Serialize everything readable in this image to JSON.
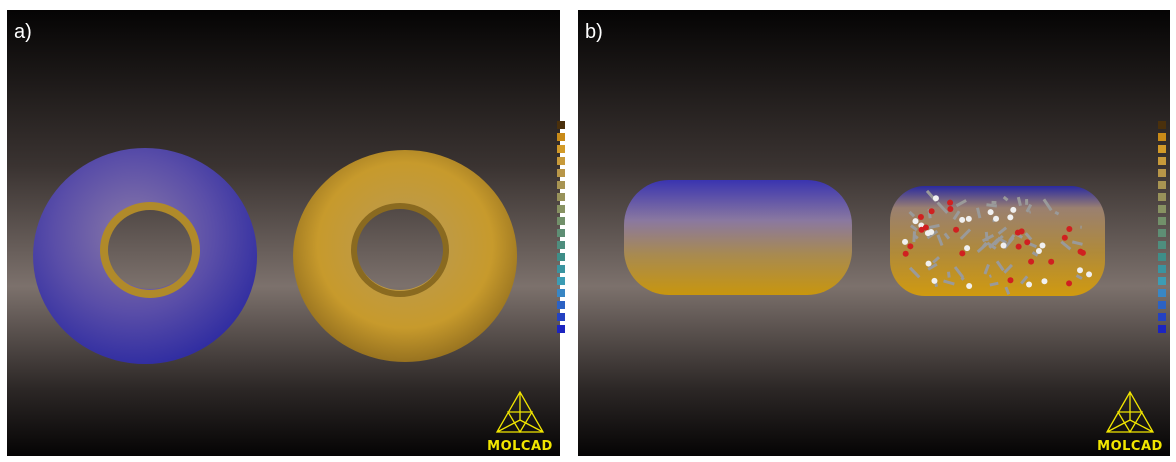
{
  "panels": [
    {
      "label": "a)",
      "logo": "MOLCAD"
    },
    {
      "label": "b)",
      "logo": "MOLCAD"
    }
  ]
}
